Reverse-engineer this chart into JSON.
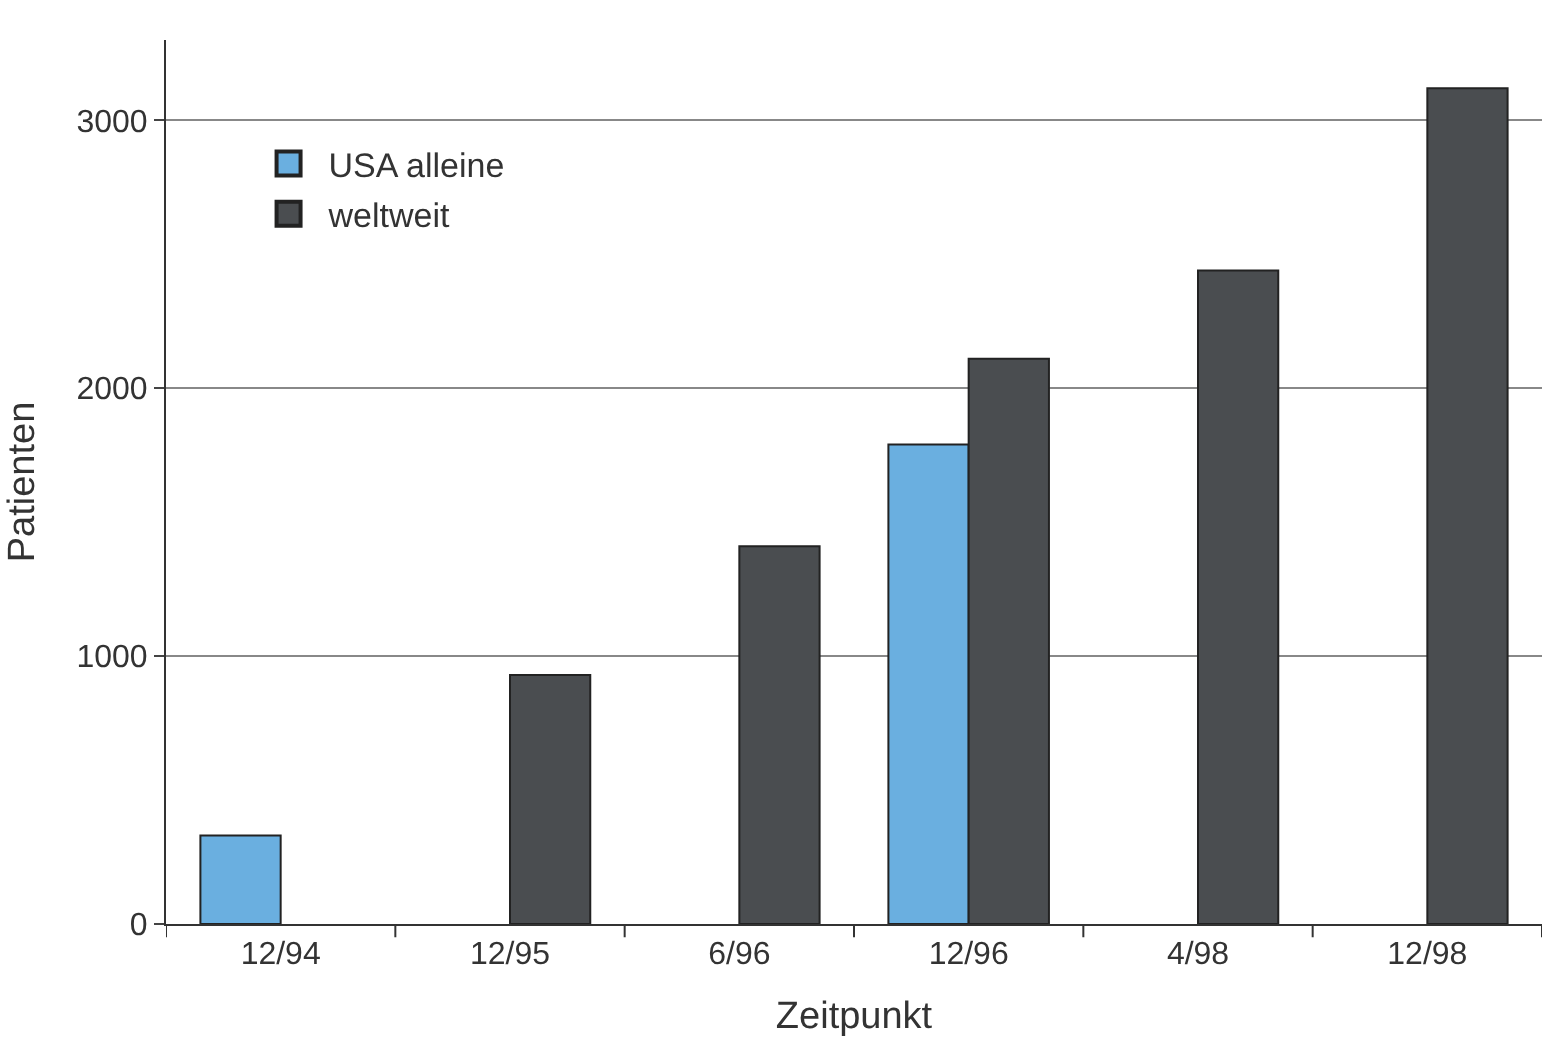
{
  "chart_data": {
    "type": "bar",
    "xlabel": "Zeitpunkt",
    "ylabel": "Patienten",
    "categories": [
      "12/94",
      "12/95",
      "6/96",
      "12/96",
      "4/98",
      "12/98"
    ],
    "series": [
      {
        "name": "USA alleine",
        "color": "#6aafe0",
        "values": [
          330,
          null,
          null,
          1790,
          null,
          null
        ]
      },
      {
        "name": "weltweit",
        "color": "#4a4d50",
        "values": [
          null,
          930,
          1410,
          2110,
          2440,
          3120
        ]
      }
    ],
    "ylim": [
      0,
      3300
    ],
    "yticks": [
      0,
      1000,
      2000,
      3000
    ],
    "grid": "y",
    "legend": "top left"
  }
}
